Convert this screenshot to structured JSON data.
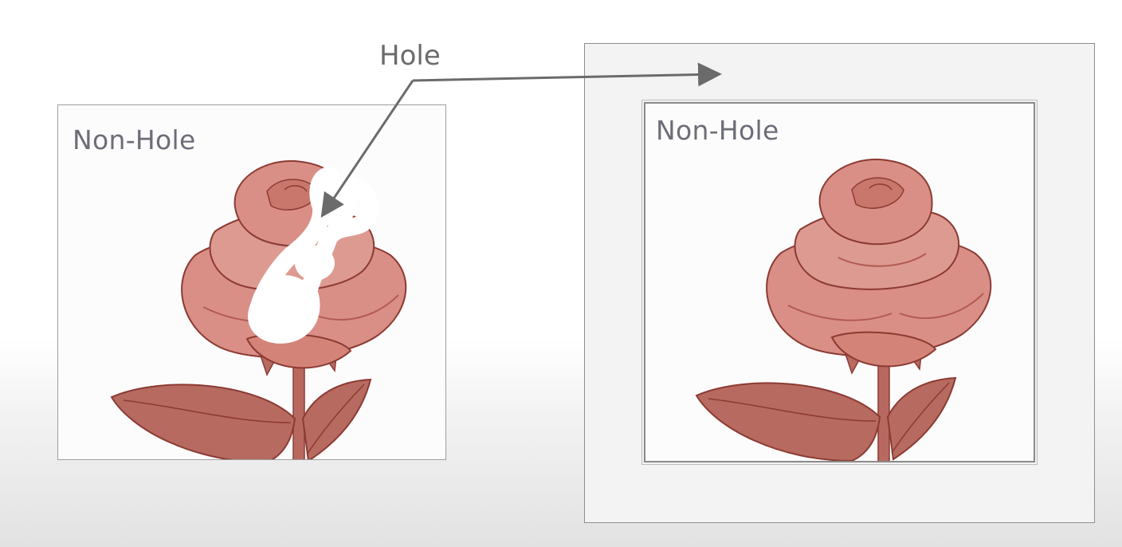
{
  "left_panel": {
    "label": "Non-Hole"
  },
  "right_panel": {
    "inner_label": "Non-Hole"
  },
  "callout": {
    "label": "Hole"
  },
  "colors": {
    "rose_fill": "#d98f86",
    "rose_shade": "#b25a52",
    "rose_outline": "#8c3a33",
    "leaf_fill": "#b76a60",
    "stem": "#b8695f",
    "arrow": "#6b6b6b",
    "hole_mask": "#ffffff"
  },
  "icons": {
    "rose": "rose-illustration",
    "arrow": "arrow-right-icon"
  }
}
